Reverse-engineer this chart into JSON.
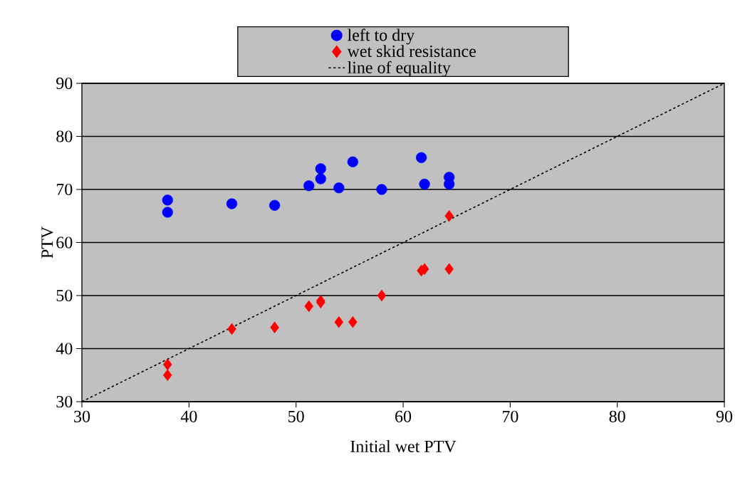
{
  "chart_data": {
    "type": "scatter",
    "xlabel": "Initial wet PTV",
    "ylabel": "PTV",
    "xlim": [
      30,
      90
    ],
    "ylim": [
      30,
      90
    ],
    "xticks": [
      30,
      40,
      50,
      60,
      70,
      80,
      90
    ],
    "yticks": [
      30,
      40,
      50,
      60,
      70,
      80,
      90
    ],
    "grid": "y",
    "legend": "top",
    "series": [
      {
        "name": "left to dry",
        "color": "#0000ff",
        "marker": "circle",
        "x": [
          38,
          38,
          44,
          48,
          51.2,
          52.3,
          52.3,
          54,
          55.3,
          58,
          61.7,
          62,
          64.3,
          64.3
        ],
        "values": [
          68,
          65.7,
          67.3,
          67,
          70.7,
          73.9,
          72,
          70.3,
          75.2,
          70,
          76,
          71,
          72.3,
          71
        ]
      },
      {
        "name": "wet skid resistance",
        "color": "#ff0000",
        "marker": "diamond",
        "x": [
          38,
          38,
          44,
          48,
          51.2,
          52.3,
          52.3,
          54,
          55.3,
          58,
          61.7,
          62,
          64.3,
          64.3
        ],
        "values": [
          37,
          35,
          43.7,
          44,
          48,
          48.7,
          49,
          45,
          45,
          50,
          54.7,
          55,
          65,
          55
        ]
      },
      {
        "name": "line of equality",
        "type": "line",
        "color": "#000000",
        "marker": "none",
        "line_style": "dotted",
        "x": [
          30,
          90
        ],
        "values": [
          30,
          90
        ]
      }
    ]
  }
}
